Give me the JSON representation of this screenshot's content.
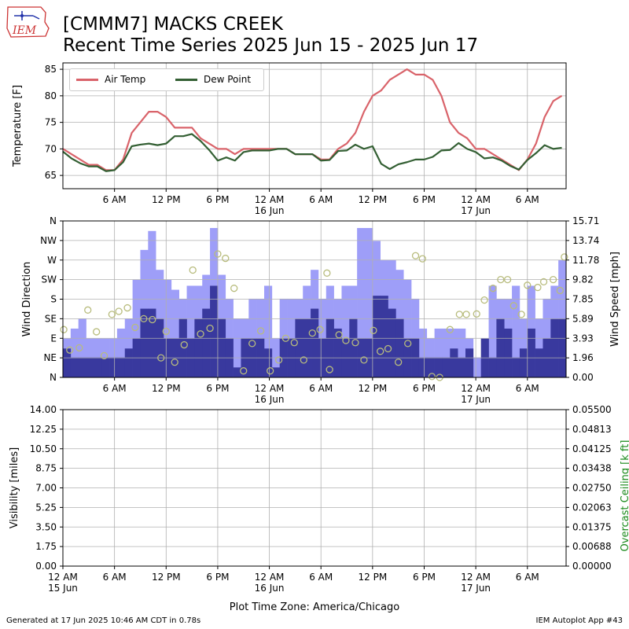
{
  "header": {
    "title_line1": "[CMMM7] MACKS CREEK",
    "title_line2": "Recent Time Series 2025 Jun 15 - 2025 Jun 17",
    "logo_text": "IEM"
  },
  "footer": {
    "generated": "Generated at 17 Jun 2025 10:46 AM CDT in 0.78s",
    "app": "IEM Autoplot App #43"
  },
  "xaxis": {
    "label": "Plot Time Zone: America/Chicago",
    "ticks_short": [
      {
        "h": 6,
        "label": "6 AM",
        "sub": ""
      },
      {
        "h": 12,
        "label": "12 PM",
        "sub": ""
      },
      {
        "h": 18,
        "label": "6 PM",
        "sub": ""
      },
      {
        "h": 24,
        "label": "12 AM",
        "sub": "16 Jun"
      },
      {
        "h": 30,
        "label": "6 AM",
        "sub": ""
      },
      {
        "h": 36,
        "label": "12 PM",
        "sub": ""
      },
      {
        "h": 42,
        "label": "6 PM",
        "sub": ""
      },
      {
        "h": 48,
        "label": "12 AM",
        "sub": "17 Jun"
      },
      {
        "h": 54,
        "label": "6 AM",
        "sub": ""
      }
    ],
    "ticks_bottom": [
      {
        "h": 0,
        "label": "12 AM",
        "sub": "15 Jun"
      },
      {
        "h": 6,
        "label": "6 AM",
        "sub": ""
      },
      {
        "h": 12,
        "label": "12 PM",
        "sub": ""
      },
      {
        "h": 18,
        "label": "6 PM",
        "sub": ""
      },
      {
        "h": 24,
        "label": "12 AM",
        "sub": "16 Jun"
      },
      {
        "h": 30,
        "label": "6 AM",
        "sub": ""
      },
      {
        "h": 36,
        "label": "12 PM",
        "sub": ""
      },
      {
        "h": 42,
        "label": "6 PM",
        "sub": ""
      },
      {
        "h": 48,
        "label": "12 AM",
        "sub": "17 Jun"
      },
      {
        "h": 54,
        "label": "6 AM",
        "sub": ""
      }
    ]
  },
  "chart_data": [
    {
      "type": "line",
      "ylabel": "Temperature [F]",
      "ylim": [
        62.5,
        86.2
      ],
      "xlim": [
        0,
        58.5
      ],
      "yticks": [
        65,
        70,
        75,
        80,
        85
      ],
      "grid": true,
      "legend_position": "top-left",
      "colors": {
        "Air Temp": "#d9636a",
        "Dew Point": "#335f33"
      },
      "x": [
        0,
        1,
        2,
        3,
        4,
        5,
        6,
        7,
        8,
        9,
        10,
        11,
        12,
        13,
        14,
        15,
        16,
        17,
        18,
        19,
        20,
        21,
        22,
        23,
        24,
        25,
        26,
        27,
        28,
        29,
        30,
        31,
        32,
        33,
        34,
        35,
        36,
        37,
        38,
        39,
        40,
        41,
        42,
        43,
        44,
        45,
        46,
        47,
        48,
        49,
        50,
        51,
        52,
        53,
        54,
        55,
        56,
        57,
        58
      ],
      "series": [
        {
          "name": "Air Temp",
          "values": [
            70,
            69,
            68,
            67,
            67,
            66,
            66,
            68,
            73,
            75,
            77,
            77,
            76,
            74,
            74,
            74,
            72,
            71,
            70,
            70,
            69,
            70,
            70,
            70,
            70,
            70,
            70,
            69,
            69,
            69,
            68,
            68,
            70,
            71,
            73,
            77,
            80,
            81,
            83,
            84,
            85,
            84,
            84,
            83,
            80,
            75,
            73,
            72,
            70,
            70,
            69,
            68,
            67,
            66,
            68,
            71,
            76,
            79,
            80
          ]
        },
        {
          "name": "Dew Point",
          "values": [
            69.5,
            68.2,
            67.3,
            66.7,
            66.7,
            65.8,
            66.0,
            67.5,
            70.5,
            70.8,
            71.0,
            70.7,
            71.0,
            72.4,
            72.4,
            72.8,
            71.5,
            69.8,
            67.8,
            68.4,
            67.8,
            69.4,
            69.7,
            69.7,
            69.7,
            70.0,
            70.0,
            69.0,
            69.0,
            69.0,
            67.8,
            67.9,
            69.6,
            69.7,
            70.8,
            70.0,
            70.5,
            67.2,
            66.2,
            67.1,
            67.5,
            68.0,
            68.0,
            68.5,
            69.7,
            69.8,
            71.1,
            70.0,
            69.4,
            68.2,
            68.4,
            67.8,
            66.8,
            66.1,
            67.9,
            69.2,
            70.7,
            70.0,
            70.2
          ]
        }
      ]
    },
    {
      "type": "bar",
      "ylabel": "Wind Direction",
      "y2label": "Wind Speed [mph]",
      "ylim": [
        0,
        360
      ],
      "y2lim": [
        0,
        15.71
      ],
      "direction_ticks": [
        "N",
        "NE",
        "E",
        "SE",
        "S",
        "SW",
        "W",
        "NW",
        "N"
      ],
      "speed_ticks": [
        "0.00",
        "1.96",
        "3.93",
        "5.89",
        "7.85",
        "9.82",
        "11.78",
        "13.74",
        "15.71"
      ],
      "grid": true,
      "colors": {
        "gust": "#9e9ef8",
        "sustained": "#39399e",
        "direction": "#b8bc7d"
      },
      "series": [
        {
          "name": "Wind Gust",
          "values": [
            3.9,
            4.9,
            5.9,
            3.9,
            3.9,
            3.9,
            3.9,
            4.9,
            5.9,
            9.8,
            12.8,
            14.7,
            10.8,
            9.8,
            8.8,
            7.9,
            9.2,
            9.2,
            10.3,
            15.0,
            10.3,
            7.9,
            5.9,
            5.9,
            7.9,
            7.9,
            9.2,
            3.9,
            7.9,
            7.9,
            7.9,
            9.2,
            10.8,
            7.9,
            9.2,
            7.9,
            9.2,
            9.2,
            15.0,
            15.0,
            13.7,
            11.8,
            11.8,
            10.8,
            9.8,
            7.9,
            4.9,
            3.9,
            4.9,
            4.9,
            4.9,
            4.9,
            3.9,
            2.0,
            2.0,
            9.2,
            7.9,
            7.9,
            9.2,
            5.9,
            9.2,
            5.9,
            7.9,
            9.2,
            11.8
          ]
        },
        {
          "name": "Wind Speed",
          "values": [
            2.9,
            2.0,
            2.0,
            2.0,
            2.0,
            2.0,
            2.0,
            2.0,
            2.9,
            3.9,
            6.9,
            6.9,
            5.9,
            3.9,
            3.9,
            5.9,
            3.9,
            5.9,
            6.9,
            9.2,
            5.9,
            3.9,
            1.0,
            3.9,
            3.9,
            3.9,
            2.9,
            1.0,
            3.9,
            3.9,
            5.9,
            5.9,
            6.9,
            3.9,
            5.9,
            4.9,
            3.9,
            5.9,
            3.9,
            3.9,
            8.2,
            8.2,
            6.9,
            5.9,
            3.9,
            3.9,
            2.0,
            2.0,
            2.0,
            2.0,
            2.9,
            2.0,
            2.9,
            0.0,
            3.9,
            2.0,
            5.9,
            4.9,
            2.0,
            2.9,
            4.9,
            2.9,
            3.9,
            5.9,
            5.9
          ]
        },
        {
          "name": "Wind Direction",
          "x": [
            0.1,
            0.8,
            1.9,
            2.9,
            3.9,
            4.8,
            5.7,
            6.5,
            7.5,
            8.4,
            9.4,
            10.4,
            11.4,
            12.0,
            13.0,
            14.1,
            15.1,
            16.0,
            17.1,
            18.0,
            18.9,
            19.9,
            21.0,
            22.0,
            23.0,
            24.1,
            25.1,
            25.9,
            26.9,
            28.0,
            29.0,
            29.9,
            30.7,
            31.0,
            32.1,
            32.9,
            34.0,
            35.0,
            36.1,
            36.9,
            37.8,
            39.0,
            40.1,
            41.0,
            41.8,
            42.9,
            43.8,
            45.0,
            46.1,
            46.9,
            48.1,
            49.0,
            50.0,
            50.9,
            51.7,
            52.4,
            53.3,
            54.0,
            55.2,
            55.9,
            57.0,
            57.8,
            58.3
          ],
          "values": [
            110,
            63,
            68,
            155,
            105,
            50,
            145,
            152,
            160,
            115,
            135,
            133,
            45,
            106,
            35,
            75,
            247,
            100,
            113,
            284,
            274,
            205,
            15,
            78,
            107,
            15,
            40,
            90,
            80,
            40,
            102,
            110,
            240,
            18,
            98,
            85,
            80,
            40,
            108,
            60,
            66,
            35,
            78,
            280,
            273,
            2,
            0,
            110,
            145,
            145,
            146,
            178,
            205,
            225,
            225,
            165,
            145,
            212,
            207,
            220,
            225,
            200,
            277
          ]
        }
      ]
    },
    {
      "type": "line",
      "ylabel": "Visibility [miles]",
      "y2label": "Overcast Ceiling [k ft]",
      "ylim": [
        0,
        14
      ],
      "y2lim": [
        0,
        0.055
      ],
      "yticks": [
        "0.00",
        "1.75",
        "3.50",
        "5.25",
        "7.00",
        "8.75",
        "10.50",
        "12.25",
        "14.00"
      ],
      "y2ticks": [
        "0.00000",
        "0.00688",
        "0.01375",
        "0.02063",
        "0.02750",
        "0.03438",
        "0.04125",
        "0.04813",
        "0.05500"
      ],
      "grid": true,
      "series": []
    }
  ]
}
